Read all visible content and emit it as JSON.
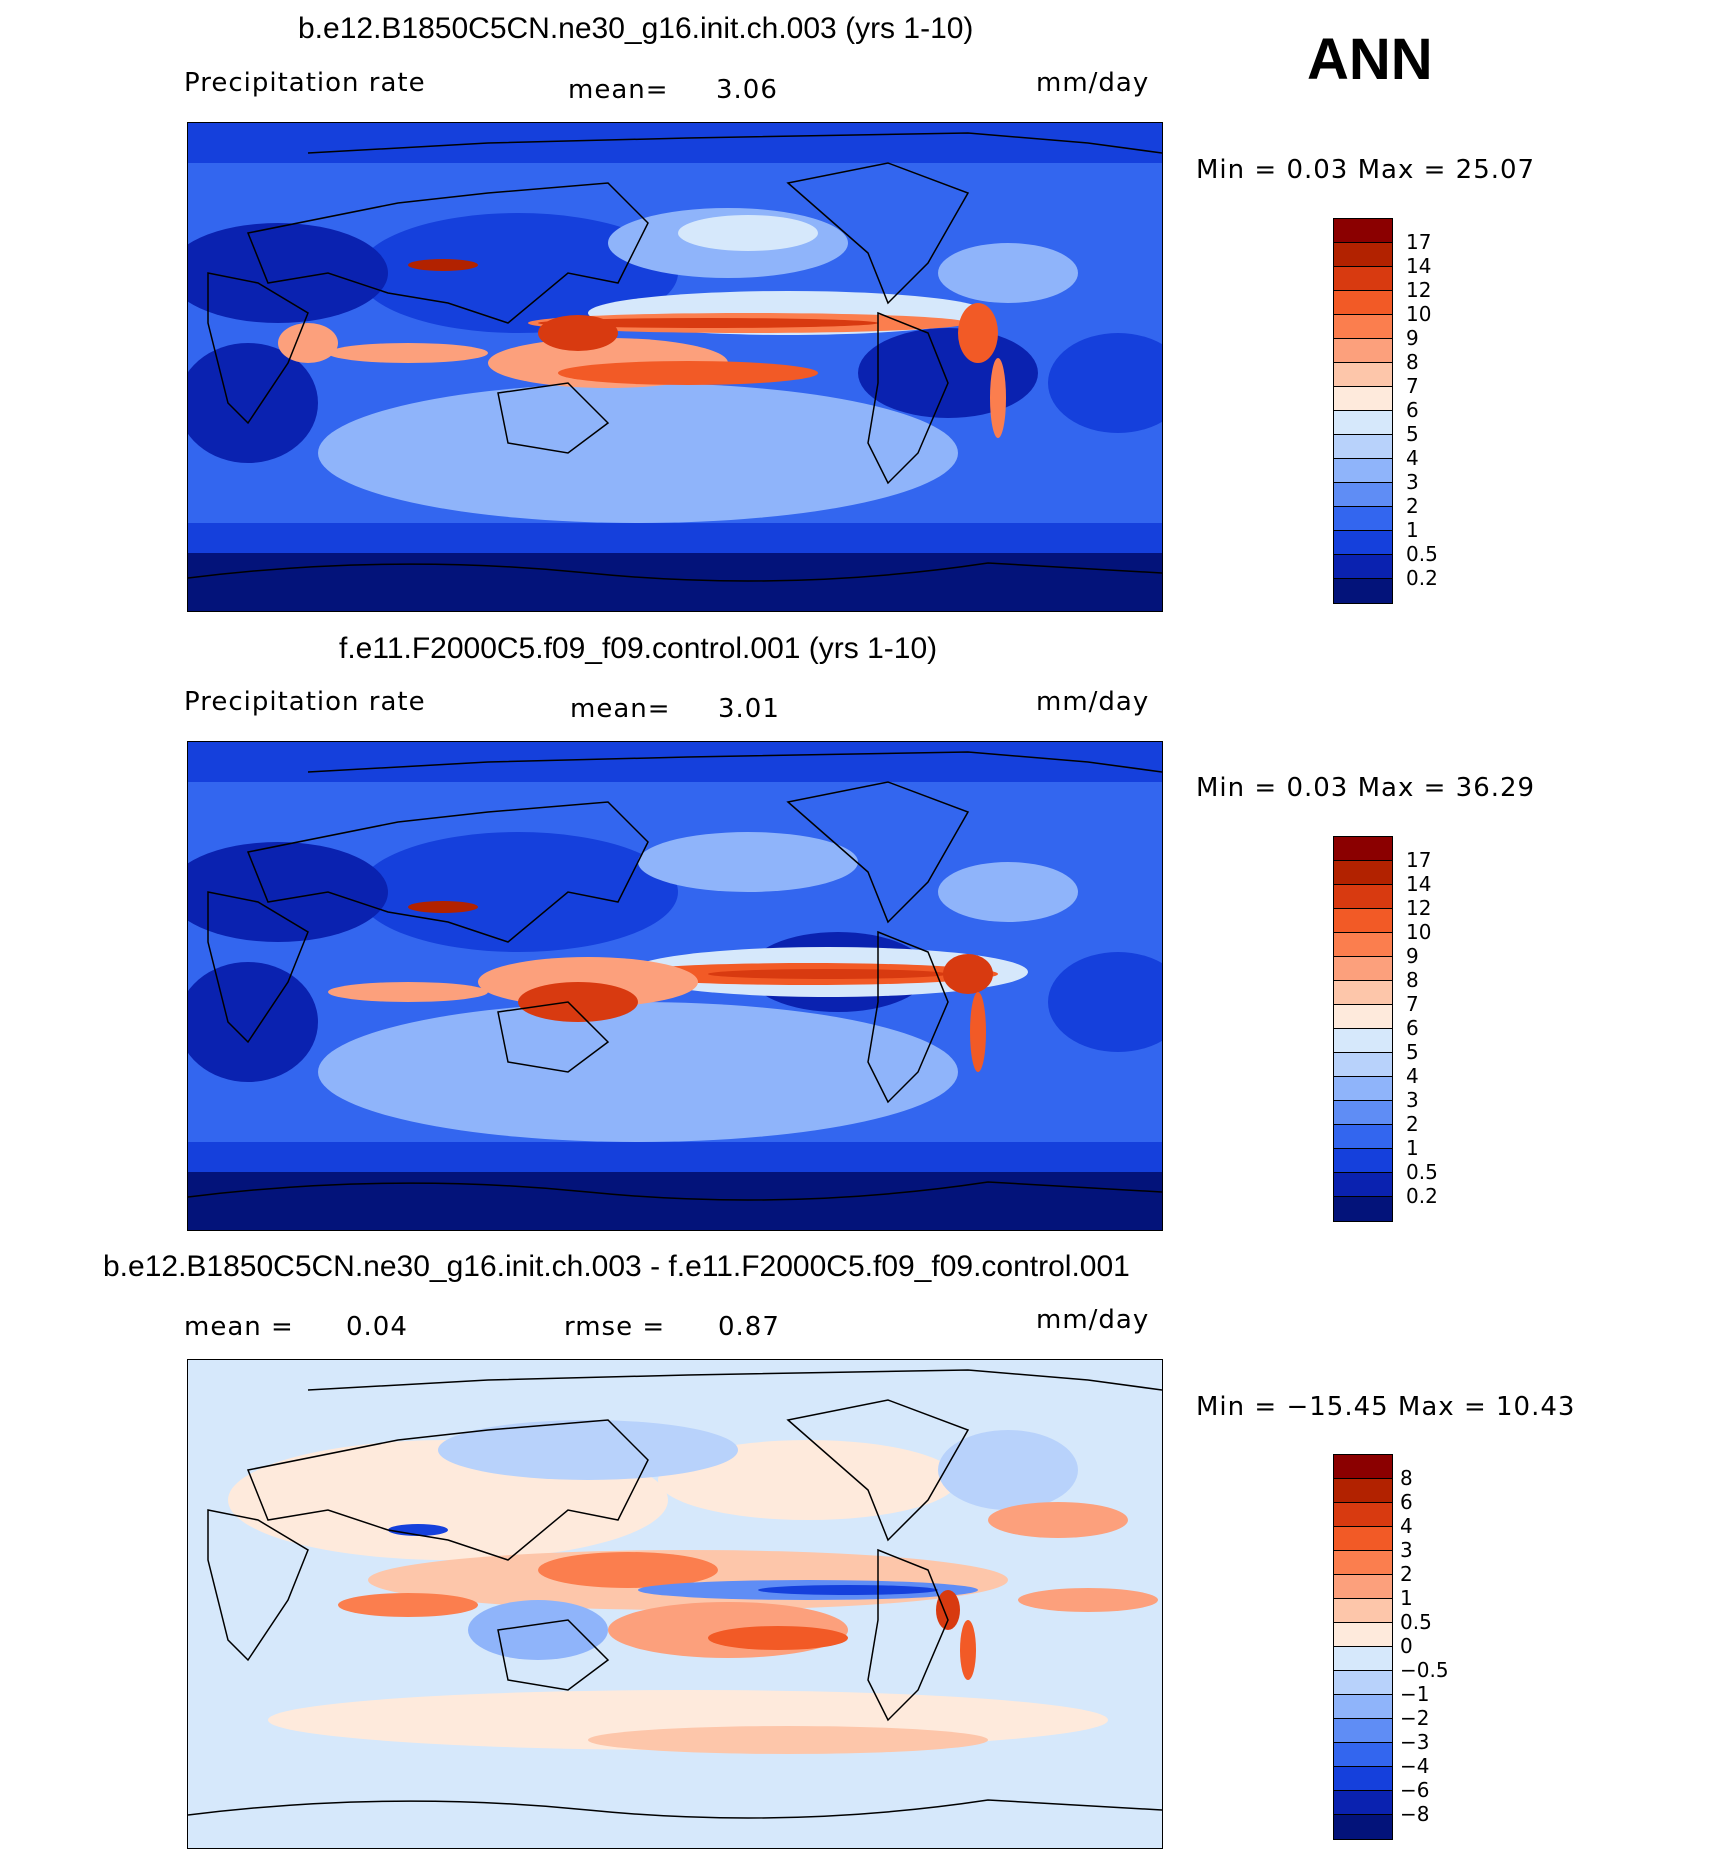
{
  "overall": {
    "season": "ANN"
  },
  "panels": [
    {
      "title": "b.e12.B1850C5CN.ne30_g16.init.ch.003 (yrs 1-10)",
      "left_label": "Precipitation rate",
      "mid_label": "mean=",
      "mid_value": "3.06",
      "units": "mm/day",
      "minmax": "Min =     0.03  Max =    25.07",
      "colorbar": {
        "labels": [
          "17",
          "14",
          "12",
          "10",
          "9",
          "8",
          "7",
          "6",
          "5",
          "4",
          "3",
          "2",
          "1",
          "0.5",
          "0.2"
        ],
        "colors": [
          "#8b0000",
          "#b22200",
          "#d83a10",
          "#f25a26",
          "#fb7e4e",
          "#fca07c",
          "#fdc6aa",
          "#feeadc",
          "#d6e8fb",
          "#b8d2fb",
          "#8fb4fa",
          "#5f8df5",
          "#3366ef",
          "#1540dc",
          "#0a22b0",
          "#03137a"
        ]
      }
    },
    {
      "title": "f.e11.F2000C5.f09_f09.control.001 (yrs 1-10)",
      "left_label": "Precipitation rate",
      "mid_label": "mean=",
      "mid_value": "3.01",
      "units": "mm/day",
      "minmax": "Min =     0.03  Max =    36.29",
      "colorbar": {
        "labels": [
          "17",
          "14",
          "12",
          "10",
          "9",
          "8",
          "7",
          "6",
          "5",
          "4",
          "3",
          "2",
          "1",
          "0.5",
          "0.2"
        ],
        "colors": [
          "#8b0000",
          "#b22200",
          "#d83a10",
          "#f25a26",
          "#fb7e4e",
          "#fca07c",
          "#fdc6aa",
          "#feeadc",
          "#d6e8fb",
          "#b8d2fb",
          "#8fb4fa",
          "#5f8df5",
          "#3366ef",
          "#1540dc",
          "#0a22b0",
          "#03137a"
        ]
      }
    },
    {
      "title": "b.e12.B1850C5CN.ne30_g16.init.ch.003 - f.e11.F2000C5.f09_f09.control.001",
      "left_label": "mean =",
      "left_value": "0.04",
      "mid_label": "rmse =",
      "mid_value": "0.87",
      "units": "mm/day",
      "minmax": "Min = −15.45  Max =    10.43",
      "colorbar": {
        "labels": [
          "8",
          "6",
          "4",
          "3",
          "2",
          "1",
          "0.5",
          "0",
          "−0.5",
          "−1",
          "−2",
          "−3",
          "−4",
          "−6",
          "−8"
        ],
        "colors": [
          "#8b0000",
          "#b22200",
          "#d83a10",
          "#f25a26",
          "#fb7e4e",
          "#fca07c",
          "#fdc6aa",
          "#feeadc",
          "#d6e8fb",
          "#b8d2fb",
          "#8fb4fa",
          "#5f8df5",
          "#3366ef",
          "#1540dc",
          "#0a22b0",
          "#03137a"
        ]
      }
    }
  ]
}
